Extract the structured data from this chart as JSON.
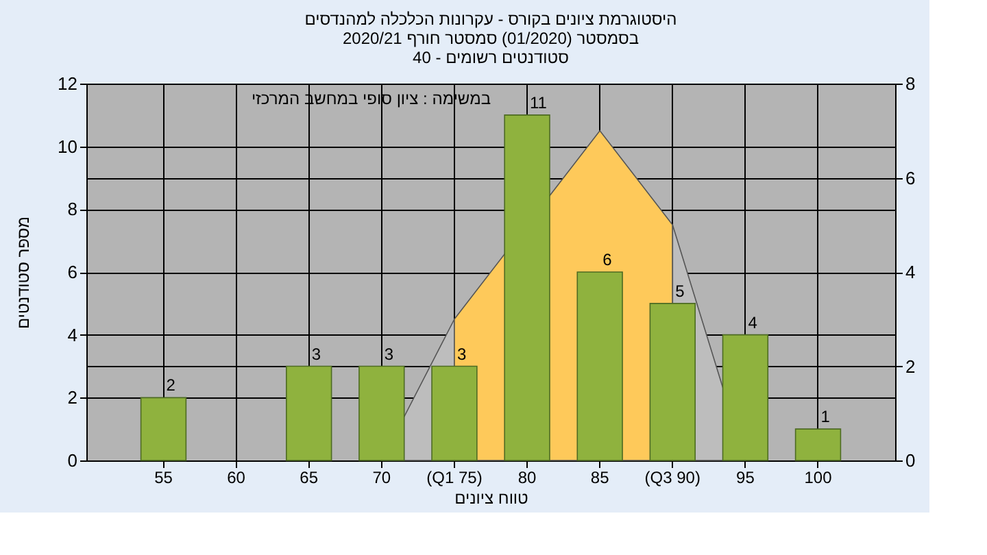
{
  "chart_data": {
    "type": "bar",
    "title": "היסטוגרמת ציונים בקורס - עקרונות הכלכלה למהנדסים\nבסמסטר  (01/2020)  סמסטר חורף 2020/21\nסטודנטים רשומים - 40",
    "xlabel": "טווח ציונים",
    "ylabel": "מספר סטודנטים",
    "categories": [
      "55",
      "60",
      "65",
      "70",
      "(Q1 75)",
      "80",
      "85",
      "(Q3 90)",
      "95",
      "100"
    ],
    "series": [
      {
        "type": "area",
        "axis": "y2",
        "color": "#bdbdbd",
        "values": [
          null,
          null,
          null,
          0,
          3,
          null,
          null,
          null,
          null,
          null
        ]
      },
      {
        "type": "area",
        "axis": "y2",
        "color": "#fec95a",
        "values": [
          null,
          null,
          null,
          null,
          3,
          null,
          7,
          5,
          null,
          null
        ]
      },
      {
        "type": "area",
        "axis": "y2",
        "color": "#bdbdbd",
        "values": [
          null,
          null,
          null,
          null,
          null,
          null,
          null,
          5,
          0,
          null
        ]
      },
      {
        "color": "#8fb23e",
        "values": [
          2,
          null,
          3,
          3,
          3,
          11,
          6,
          5,
          4,
          1
        ],
        "value_labels": [
          "2",
          null,
          "3",
          "3",
          "3",
          "11",
          "6",
          "5",
          "4",
          "1"
        ]
      }
    ],
    "ylim": [
      0,
      12
    ],
    "yticks": [
      0,
      2,
      4,
      6,
      8,
      10,
      12
    ],
    "y2lim": [
      0,
      8
    ],
    "y2ticks": [
      0,
      2,
      4,
      6,
      8
    ],
    "grid": true,
    "annotations": [
      "במשימה : ציון סופי במחשב המרכזי"
    ]
  }
}
